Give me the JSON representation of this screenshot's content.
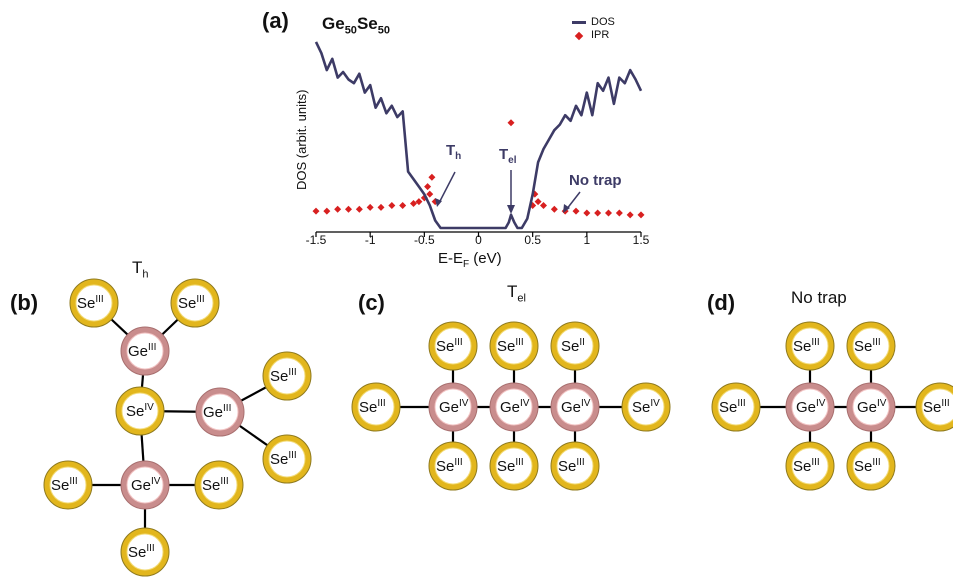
{
  "panel_a": {
    "label": "(a)",
    "title_main": "Ge",
    "title_sub1": "50",
    "title_mid": "Se",
    "title_sub2": "50",
    "legend": [
      "DOS",
      "IPR"
    ],
    "colors": {
      "dos": "#3d3b66",
      "ipr": "#d82020"
    },
    "annotations": {
      "th_main": "T",
      "th_sub": "h",
      "tel_main": "T",
      "tel_sub": "el",
      "notrap": "No trap"
    },
    "ylabel": "DOS (arbit. units)",
    "xlabel_main": "E-E",
    "xlabel_sub": "F",
    "xlabel_unit": " (eV)",
    "xticks": [
      "-1.5",
      "-1",
      "-0.5",
      "0",
      "0.5",
      "1",
      "1.5"
    ]
  },
  "chart_data": {
    "type": "line",
    "xlim": [
      -1.5,
      1.5
    ],
    "ylim": [
      0,
      1
    ],
    "series": [
      {
        "name": "DOS",
        "x": [
          -1.5,
          -1.45,
          -1.4,
          -1.35,
          -1.3,
          -1.25,
          -1.2,
          -1.15,
          -1.1,
          -1.05,
          -1.0,
          -0.95,
          -0.9,
          -0.85,
          -0.8,
          -0.75,
          -0.7,
          -0.65,
          -0.6,
          -0.55,
          -0.5,
          -0.45,
          -0.4,
          -0.35,
          0.25,
          0.28,
          0.3,
          0.33,
          0.36,
          0.4,
          0.45,
          0.5,
          0.55,
          0.6,
          0.65,
          0.7,
          0.75,
          0.8,
          0.85,
          0.9,
          0.95,
          1.0,
          1.05,
          1.1,
          1.15,
          1.2,
          1.25,
          1.3,
          1.35,
          1.4,
          1.45,
          1.5
        ],
        "y": [
          0.99,
          0.93,
          0.84,
          0.9,
          0.8,
          0.83,
          0.79,
          0.77,
          0.82,
          0.72,
          0.76,
          0.64,
          0.69,
          0.61,
          0.65,
          0.59,
          0.62,
          0.3,
          0.26,
          0.22,
          0.18,
          0.12,
          0.04,
          0.0,
          0.0,
          0.03,
          0.07,
          0.03,
          0.0,
          0.0,
          0.05,
          0.18,
          0.35,
          0.42,
          0.47,
          0.52,
          0.55,
          0.6,
          0.57,
          0.65,
          0.6,
          0.72,
          0.6,
          0.77,
          0.73,
          0.8,
          0.66,
          0.8,
          0.77,
          0.84,
          0.79,
          0.73
        ]
      },
      {
        "name": "IPR",
        "x": [
          -1.5,
          -1.4,
          -1.3,
          -1.2,
          -1.1,
          -1.0,
          -0.9,
          -0.8,
          -0.7,
          -0.6,
          -0.55,
          -0.5,
          -0.47,
          -0.45,
          -0.43,
          -0.4,
          0.3,
          0.5,
          0.52,
          0.55,
          0.6,
          0.7,
          0.8,
          0.9,
          1.0,
          1.1,
          1.2,
          1.3,
          1.4,
          1.5
        ],
        "y": [
          0.09,
          0.09,
          0.1,
          0.1,
          0.1,
          0.11,
          0.11,
          0.12,
          0.12,
          0.13,
          0.14,
          0.16,
          0.22,
          0.18,
          0.27,
          0.14,
          0.56,
          0.12,
          0.18,
          0.14,
          0.12,
          0.1,
          0.09,
          0.09,
          0.08,
          0.08,
          0.08,
          0.08,
          0.07,
          0.07
        ]
      }
    ]
  },
  "molecules": {
    "b": {
      "label": "(b)",
      "title_main": "T",
      "title_sub": "h"
    },
    "c": {
      "label": "(c)",
      "title_main": "T",
      "title_sub": "el"
    },
    "d": {
      "label": "(d)",
      "title_main": "No trap"
    }
  },
  "atom_colors": {
    "se_ring": "#e2b61d",
    "se_ring_dark": "#8f7a1e",
    "ge_ring": "#c98d8d",
    "ge_ring_light": "#f2c4c4"
  },
  "atoms": [
    {
      "id": "b-se1",
      "el": "Se",
      "ox": "III"
    },
    {
      "id": "b-se2",
      "el": "Se",
      "ox": "III"
    },
    {
      "id": "b-ge1",
      "el": "Ge",
      "ox": "III"
    },
    {
      "id": "b-se3",
      "el": "Se",
      "ox": "III"
    },
    {
      "id": "b-se4",
      "el": "Se",
      "ox": "IV"
    },
    {
      "id": "b-ge2",
      "el": "Ge",
      "ox": "III"
    },
    {
      "id": "b-se5",
      "el": "Se",
      "ox": "III"
    },
    {
      "id": "b-se6",
      "el": "Se",
      "ox": "III"
    },
    {
      "id": "b-ge3",
      "el": "Ge",
      "ox": "IV"
    },
    {
      "id": "b-se7",
      "el": "Se",
      "ox": "III"
    },
    {
      "id": "b-se8",
      "el": "Se",
      "ox": "III"
    },
    {
      "id": "c-se1",
      "el": "Se",
      "ox": "III"
    },
    {
      "id": "c-se2",
      "el": "Se",
      "ox": "III"
    },
    {
      "id": "c-se3",
      "el": "Se",
      "ox": "II"
    },
    {
      "id": "c-se4",
      "el": "Se",
      "ox": "III"
    },
    {
      "id": "c-ge1",
      "el": "Ge",
      "ox": "IV"
    },
    {
      "id": "c-ge2",
      "el": "Ge",
      "ox": "IV"
    },
    {
      "id": "c-ge3",
      "el": "Ge",
      "ox": "IV"
    },
    {
      "id": "c-se5",
      "el": "Se",
      "ox": "IV"
    },
    {
      "id": "c-se6",
      "el": "Se",
      "ox": "III"
    },
    {
      "id": "c-se7",
      "el": "Se",
      "ox": "III"
    },
    {
      "id": "c-se8",
      "el": "Se",
      "ox": "III"
    },
    {
      "id": "d-se1",
      "el": "Se",
      "ox": "III"
    },
    {
      "id": "d-se2",
      "el": "Se",
      "ox": "III"
    },
    {
      "id": "d-se3",
      "el": "Se",
      "ox": "III"
    },
    {
      "id": "d-ge1",
      "el": "Ge",
      "ox": "IV"
    },
    {
      "id": "d-ge2",
      "el": "Ge",
      "ox": "IV"
    },
    {
      "id": "d-se4",
      "el": "Se",
      "ox": "III"
    },
    {
      "id": "d-se5",
      "el": "Se",
      "ox": "III"
    },
    {
      "id": "d-se6",
      "el": "Se",
      "ox": "III"
    }
  ]
}
